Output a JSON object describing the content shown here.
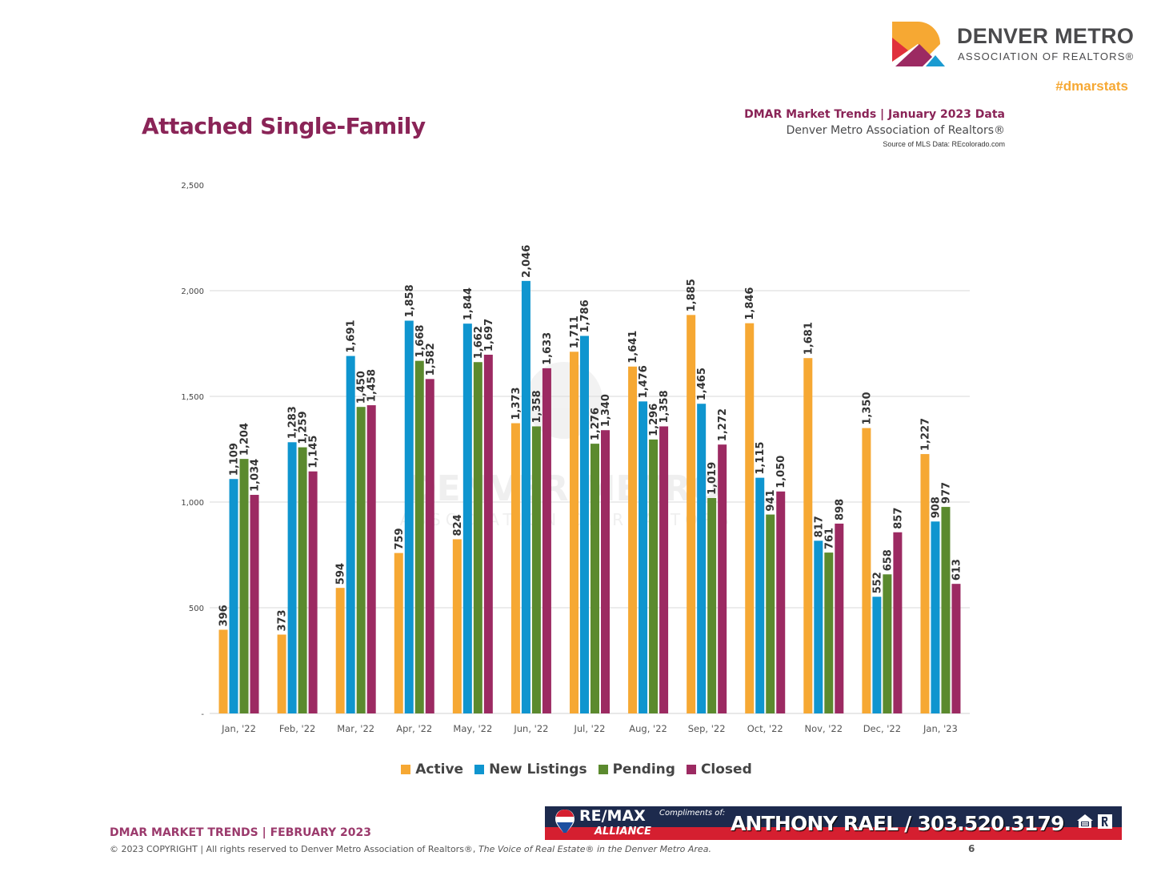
{
  "header": {
    "logo_line1": "DENVER METRO",
    "logo_line2": "ASSOCIATION OF REALTORS®",
    "hashtag": "#dmarstats",
    "page_title": "Attached Single-Family",
    "subtitle_main": "DMAR Market Trends | January 2023 Data",
    "subtitle_org": "Denver Metro Association of Realtors®",
    "subtitle_source": "Source of MLS Data: REcolorado.com"
  },
  "watermark": {
    "line1": "DENVER METRO",
    "line2": "ASSOCIATION OF REALTORS"
  },
  "colors": {
    "active": "#f6a833",
    "new_listings": "#0f95cf",
    "pending": "#5b8a2e",
    "closed": "#9c2a62",
    "title": "#8a2457",
    "grid": "#d9d9d9"
  },
  "chart_data": {
    "type": "bar",
    "title": "Attached Single-Family",
    "xlabel": "",
    "ylabel": "",
    "ylim": [
      0,
      2500
    ],
    "yticks": [
      0,
      500,
      1000,
      1500,
      2000,
      2500
    ],
    "ytick_labels": [
      "-",
      "500",
      "1,000",
      "1,500",
      "2,000",
      "2,500"
    ],
    "grid": true,
    "legend_position": "bottom",
    "categories": [
      "Jan, '22",
      "Feb, '22",
      "Mar, '22",
      "Apr, '22",
      "May, '22",
      "Jun, '22",
      "Jul, '22",
      "Aug, '22",
      "Sep, '22",
      "Oct, '22",
      "Nov, '22",
      "Dec, '22",
      "Jan, '23"
    ],
    "series": [
      {
        "name": "Active",
        "color": "#f6a833",
        "values": [
          396,
          373,
          594,
          759,
          824,
          1373,
          1711,
          1641,
          1885,
          1846,
          1681,
          1350,
          1227
        ]
      },
      {
        "name": "New Listings",
        "color": "#0f95cf",
        "values": [
          1109,
          1283,
          1691,
          1858,
          1844,
          2046,
          1786,
          1476,
          1465,
          1115,
          817,
          552,
          908
        ]
      },
      {
        "name": "Pending",
        "color": "#5b8a2e",
        "values": [
          1204,
          1259,
          1450,
          1668,
          1662,
          1358,
          1276,
          1296,
          1019,
          941,
          761,
          658,
          977
        ]
      },
      {
        "name": "Closed",
        "color": "#9c2a62",
        "values": [
          1034,
          1145,
          1458,
          1582,
          1697,
          1633,
          1340,
          1358,
          1272,
          1050,
          898,
          857,
          613
        ]
      }
    ]
  },
  "footer": {
    "title": "DMAR MARKET TRENDS | FEBRUARY 2023",
    "copyright_prefix": "© 2023 COPYRIGHT | All rights reserved to Denver Metro Association of Realtors®, ",
    "copyright_italic": "The Voice of Real Estate® in the Denver Metro Area.",
    "page_number": "6"
  },
  "banner": {
    "brand": "RE/MAX",
    "brand_sub": "ALLIANCE",
    "compliments": "Compliments of:",
    "agent": "ANTHONY RAEL / 303.520.3179"
  }
}
